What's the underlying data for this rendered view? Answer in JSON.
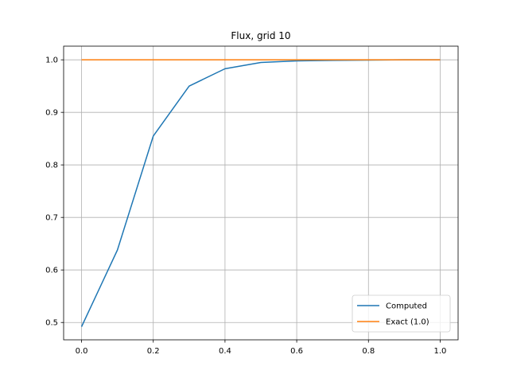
{
  "chart_data": {
    "type": "line",
    "title": "Flux, grid 10",
    "xlabel": "",
    "ylabel": "",
    "xlim": [
      -0.05,
      1.05
    ],
    "ylim": [
      0.467,
      1.026
    ],
    "xticks": [
      0.0,
      0.2,
      0.4,
      0.6,
      0.8,
      1.0
    ],
    "xtick_labels": [
      "0.0",
      "0.2",
      "0.4",
      "0.6",
      "0.8",
      "1.0"
    ],
    "yticks": [
      0.5,
      0.6,
      0.7,
      0.8,
      0.9,
      1.0
    ],
    "ytick_labels": [
      "0.5",
      "0.6",
      "0.7",
      "0.8",
      "0.9",
      "1.0"
    ],
    "grid": true,
    "legend_position": "lower-right",
    "series": [
      {
        "name": "Computed",
        "color": "#1f77b4",
        "x": [
          0.0,
          0.1,
          0.2,
          0.3,
          0.4,
          0.5,
          0.6,
          0.7,
          0.8,
          0.9,
          1.0
        ],
        "y": [
          0.492,
          0.638,
          0.855,
          0.95,
          0.983,
          0.995,
          0.998,
          0.999,
          0.9995,
          1.0,
          1.0
        ]
      },
      {
        "name": "Exact (1.0)",
        "color": "#ff7f0e",
        "x": [
          0.0,
          1.0
        ],
        "y": [
          1.0,
          1.0
        ]
      }
    ]
  }
}
